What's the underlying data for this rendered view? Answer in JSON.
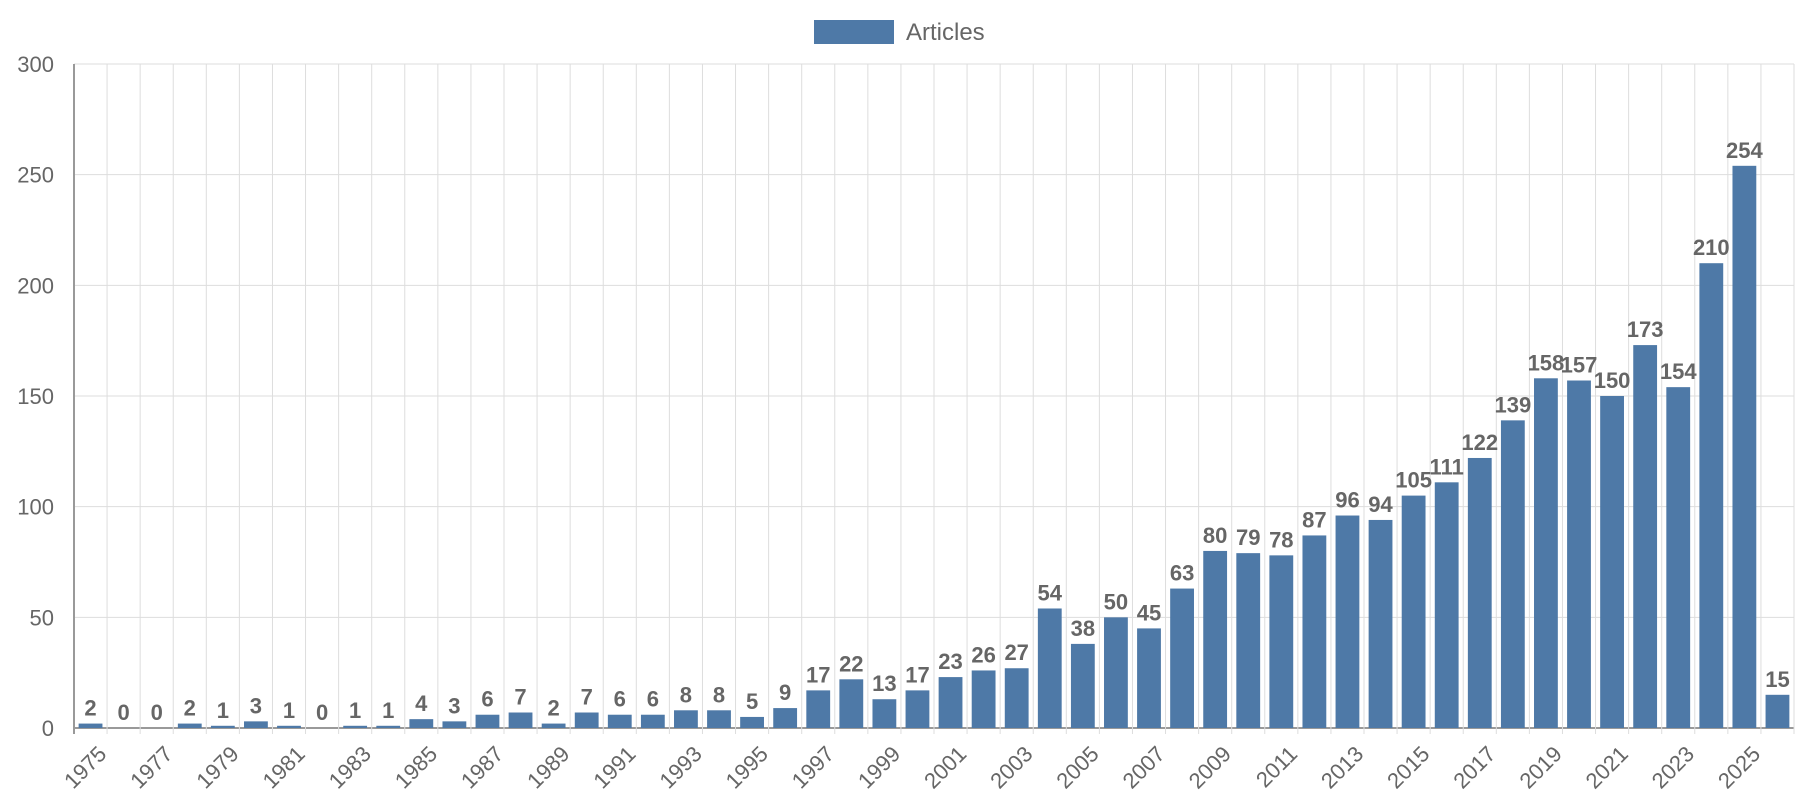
{
  "chart_data": {
    "type": "bar",
    "title": "",
    "xlabel": "",
    "ylabel": "",
    "ylim": [
      0,
      300
    ],
    "yticks": [
      0,
      50,
      100,
      150,
      200,
      250,
      300
    ],
    "grid": true,
    "legend_position": "top-center",
    "colors": {
      "bar": "#4e79a7",
      "grid": "#dddddd",
      "axis": "#999999",
      "label": "#666666"
    },
    "categories": [
      "1975",
      "1976",
      "1977",
      "1978",
      "1979",
      "1980",
      "1981",
      "1982",
      "1983",
      "1984",
      "1985",
      "1986",
      "1987",
      "1988",
      "1989",
      "1990",
      "1991",
      "1992",
      "1993",
      "1994",
      "1995",
      "1996",
      "1997",
      "1998",
      "1999",
      "2000",
      "2001",
      "2002",
      "2003",
      "2004",
      "2005",
      "2006",
      "2007",
      "2008",
      "2009",
      "2010",
      "2011",
      "2012",
      "2013",
      "2014",
      "2015",
      "2016",
      "2017",
      "2018",
      "2019",
      "2020",
      "2021",
      "2022",
      "2023",
      "2024",
      "2025",
      "2026"
    ],
    "x_tick_labels": [
      "1975",
      "1977",
      "1979",
      "1981",
      "1983",
      "1985",
      "1987",
      "1989",
      "1991",
      "1993",
      "1995",
      "1997",
      "1999",
      "2001",
      "2003",
      "2005",
      "2007",
      "2009",
      "2011",
      "2013",
      "2015",
      "2017",
      "2019",
      "2021",
      "2023",
      "2025"
    ],
    "series": [
      {
        "name": "Articles",
        "values": [
          2,
          0,
          0,
          2,
          1,
          3,
          1,
          0,
          1,
          1,
          4,
          3,
          6,
          7,
          2,
          7,
          6,
          6,
          8,
          8,
          5,
          9,
          17,
          22,
          13,
          17,
          23,
          26,
          27,
          54,
          38,
          50,
          45,
          63,
          80,
          79,
          78,
          87,
          96,
          94,
          105,
          111,
          122,
          139,
          158,
          157,
          150,
          173,
          154,
          210,
          254,
          15
        ]
      }
    ]
  }
}
